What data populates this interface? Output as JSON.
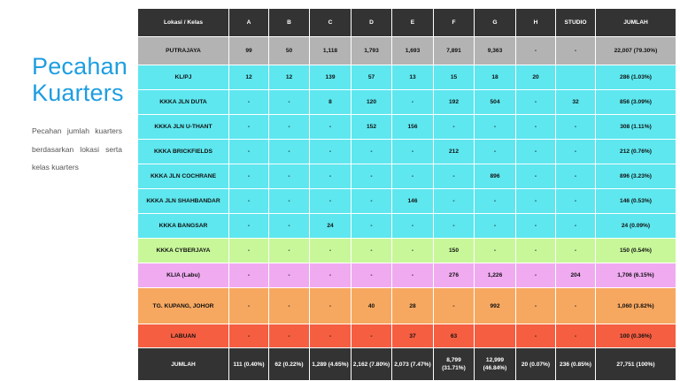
{
  "slide": {
    "title_line1": "Pecahan",
    "title_line2": "Kuarters",
    "description": "Pecahan jumlah kuarters berdasarkan lokasi serta kelas kuarters"
  },
  "table": {
    "headers": [
      "Lokasi / Kelas",
      "A",
      "B",
      "C",
      "D",
      "E",
      "F",
      "G",
      "H",
      "STUDIO",
      "JUMLAH"
    ],
    "rows": [
      {
        "style": "putra",
        "cells": [
          "PUTRAJAYA",
          "99",
          "50",
          "1,118",
          "1,793",
          "1,693",
          "7,891",
          "9,363",
          "-",
          "-",
          "22,007 (79.30%)"
        ]
      },
      {
        "style": "cyan",
        "cells": [
          "KL/PJ",
          "12",
          "12",
          "139",
          "57",
          "13",
          "15",
          "18",
          "20",
          "",
          "286 (1.03%)"
        ]
      },
      {
        "style": "cyan",
        "cells": [
          "KKKA JLN DUTA",
          "-",
          "-",
          "8",
          "120",
          "-",
          "192",
          "504",
          "-",
          "32",
          "856 (3.09%)"
        ]
      },
      {
        "style": "cyan",
        "cells": [
          "KKKA JLN U-THANT",
          "-",
          "-",
          "-",
          "152",
          "156",
          "-",
          "-",
          "-",
          "-",
          "308 (1.11%)"
        ]
      },
      {
        "style": "cyan",
        "cells": [
          "KKKA BRICKFIELDS",
          "-",
          "-",
          "-",
          "-",
          "-",
          "212",
          "-",
          "-",
          "-",
          "212 (0.76%)"
        ]
      },
      {
        "style": "cyan",
        "cells": [
          "KKKA JLN COCHRANE",
          "-",
          "-",
          "-",
          "-",
          "-",
          "-",
          "896",
          "-",
          "-",
          "896 (3.23%)"
        ]
      },
      {
        "style": "cyan",
        "cells": [
          "KKKA JLN SHAHBANDAR",
          "-",
          "-",
          "-",
          "-",
          "146",
          "-",
          "-",
          "-",
          "-",
          "146 (0.53%)"
        ]
      },
      {
        "style": "cyan",
        "cells": [
          "KKKA BANGSAR",
          "-",
          "-",
          "24",
          "-",
          "-",
          "-",
          "-",
          "-",
          "-",
          "24 (0.09%)"
        ]
      },
      {
        "style": "green",
        "cells": [
          "KKKA CYBERJAYA",
          "-",
          "-",
          "-",
          "-",
          "-",
          "150",
          "-",
          "-",
          "-",
          "150 (0.54%)"
        ]
      },
      {
        "style": "pink",
        "cells": [
          "KLIA (Labu)",
          "-",
          "-",
          "-",
          "-",
          "-",
          "276",
          "1,226",
          "-",
          "204",
          "1,706 (6.15%)"
        ]
      },
      {
        "style": "orange",
        "cells": [
          "TG. KUPANG, JOHOR",
          "-",
          "-",
          "-",
          "40",
          "28",
          "-",
          "992",
          "-",
          "-",
          "1,060 (3.82%)"
        ]
      },
      {
        "style": "red",
        "cells": [
          "LABUAN",
          "-",
          "-",
          "-",
          "-",
          "37",
          "63",
          "",
          "-",
          "-",
          "100 (0.36%)"
        ]
      }
    ],
    "totals": [
      "JUMLAH",
      "111 (0.40%)",
      "62 (0.22%)",
      "1,289 (4.65%)",
      "2,162 (7.80%)",
      "2,073 (7.47%)",
      "8,799 (31.71%)",
      "12,999 (46.84%)",
      "20 (0.07%)",
      "236 (0.85%)",
      "27,751 (100%)"
    ]
  }
}
